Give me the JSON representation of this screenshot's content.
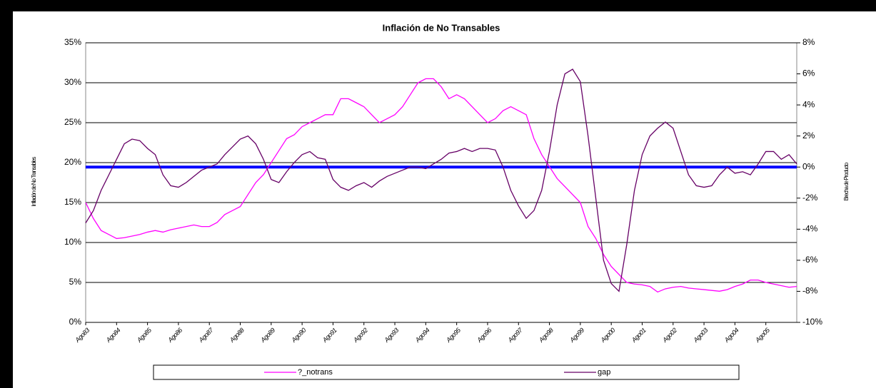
{
  "chart_data": {
    "type": "line",
    "title": "Inflación de No Transables",
    "y_label": "Inflación de No Transables",
    "y2_label": "Brecha de Producto",
    "categories": [
      "Ago83",
      null,
      null,
      null,
      "Ago84",
      null,
      null,
      null,
      "Ago85",
      null,
      null,
      null,
      "Ago86",
      null,
      null,
      null,
      "Ago87",
      null,
      null,
      null,
      "Ago88",
      null,
      null,
      null,
      "Ago89",
      null,
      null,
      null,
      "Ago90",
      null,
      null,
      null,
      "Ago91",
      null,
      null,
      null,
      "Ago92",
      null,
      null,
      null,
      "Ago93",
      null,
      null,
      null,
      "Ago94",
      null,
      null,
      null,
      "Ago95",
      null,
      null,
      null,
      "Ago96",
      null,
      null,
      null,
      "Ago97",
      null,
      null,
      null,
      "Ago98",
      null,
      null,
      null,
      "Ago99",
      null,
      null,
      null,
      "Ago00",
      null,
      null,
      null,
      "Ago01",
      null,
      null,
      null,
      "Ago02",
      null,
      null,
      null,
      "Ago03",
      null,
      null,
      null,
      "Ago04",
      null,
      null,
      null,
      "Ago05",
      null,
      null,
      null,
      null
    ],
    "series": [
      {
        "name": "?_notrans",
        "color": "#ff00ff",
        "values": [
          15,
          13,
          11.5,
          11,
          10.5,
          10.6,
          10.8,
          11,
          11.3,
          11.5,
          11.3,
          11.6,
          11.8,
          12,
          12.2,
          12,
          12,
          12.5,
          13.5,
          14,
          14.5,
          16,
          17.5,
          18.5,
          20,
          21.5,
          23,
          23.5,
          24.5,
          25,
          25.5,
          26,
          26,
          28,
          28,
          27.5,
          27,
          26,
          25,
          25.5,
          26,
          27,
          28.5,
          30,
          30.5,
          30.5,
          29.5,
          28,
          28.5,
          28,
          27,
          26,
          25,
          25.5,
          26.5,
          27,
          26.5,
          26,
          23,
          21,
          19.5,
          18,
          17,
          16,
          15,
          12,
          10.5,
          8.5,
          7,
          6,
          5,
          4.8,
          4.7,
          4.5,
          3.8,
          4.2,
          4.4,
          4.5,
          4.3,
          4.2,
          4.1,
          4,
          3.9,
          4.1,
          4.5,
          4.8,
          5.3,
          5.3,
          5,
          4.8,
          4.6,
          4.4,
          4.5
        ]
      },
      {
        "name": "gap",
        "color": "#660066",
        "axis": "y2",
        "values": [
          -3.6,
          -2.8,
          -1.5,
          -0.5,
          0.5,
          1.5,
          1.8,
          1.7,
          1.2,
          0.8,
          -0.5,
          -1.2,
          -1.3,
          -1,
          -0.6,
          -0.2,
          0,
          0.2,
          0.8,
          1.3,
          1.8,
          2,
          1.5,
          0.5,
          -0.8,
          -1,
          -0.3,
          0.3,
          0.8,
          1,
          0.6,
          0.5,
          -0.8,
          -1.3,
          -1.5,
          -1.2,
          -1,
          -1.3,
          -0.9,
          -0.6,
          -0.4,
          -0.2,
          0,
          0,
          -0.1,
          0.2,
          0.5,
          0.9,
          1,
          1.2,
          1,
          1.2,
          1.2,
          1.1,
          0,
          -1.5,
          -2.5,
          -3.3,
          -2.8,
          -1.5,
          1,
          4,
          6,
          6.3,
          5.5,
          2,
          -2,
          -6,
          -7.5,
          -8,
          -5,
          -1.5,
          0.8,
          2,
          2.5,
          2.9,
          2.5,
          1,
          -0.5,
          -1.2,
          -1.3,
          -1.2,
          -0.5,
          0,
          -0.4,
          -0.3,
          -0.5,
          0.2,
          1,
          1,
          0.5,
          0.8,
          0.2
        ]
      }
    ],
    "ylim": [
      0,
      35
    ],
    "yticks": [
      {
        "value": 0,
        "label": "0%"
      },
      {
        "value": 5,
        "label": "5%"
      },
      {
        "value": 10,
        "label": "10%"
      },
      {
        "value": 15,
        "label": "15%"
      },
      {
        "value": 20,
        "label": "20%"
      },
      {
        "value": 25,
        "label": "25%"
      },
      {
        "value": 30,
        "label": "30%"
      },
      {
        "value": 35,
        "label": "35%"
      }
    ],
    "y2lim": [
      -10,
      8
    ],
    "y2ticks": [
      {
        "value": -10,
        "label": "-10%"
      },
      {
        "value": -8,
        "label": "-8%"
      },
      {
        "value": -6,
        "label": "-6%"
      },
      {
        "value": -4,
        "label": "-4%"
      },
      {
        "value": -2,
        "label": "-2%"
      },
      {
        "value": 0,
        "label": "0%"
      },
      {
        "value": 2,
        "label": "2%"
      },
      {
        "value": 4,
        "label": "4%"
      },
      {
        "value": 6,
        "label": "6%"
      },
      {
        "value": 8,
        "label": "8%"
      }
    ],
    "reference_line": {
      "axis": "y2",
      "value": 0,
      "color": "#0000ff"
    },
    "grid": true,
    "legend": "bottom"
  }
}
